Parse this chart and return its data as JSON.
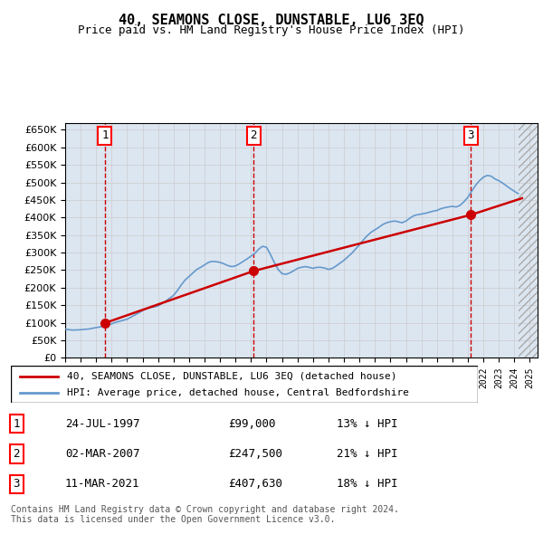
{
  "title": "40, SEAMONS CLOSE, DUNSTABLE, LU6 3EQ",
  "subtitle": "Price paid vs. HM Land Registry's House Price Index (HPI)",
  "ylim": [
    0,
    670000
  ],
  "yticks": [
    0,
    50000,
    100000,
    150000,
    200000,
    250000,
    300000,
    350000,
    400000,
    450000,
    500000,
    550000,
    600000,
    650000
  ],
  "xlim_start": 1995.0,
  "xlim_end": 2025.5,
  "grid_color": "#cccccc",
  "bg_color": "#dce6f1",
  "plot_bg": "#dce6f1",
  "hpi_color": "#6699cc",
  "price_color": "#cc0000",
  "dashed_line_color": "#cc0000",
  "transactions": [
    {
      "label": "1",
      "date": "24-JUL-1997",
      "year": 1997.56,
      "price": 99000,
      "hpi_pct": "13% ↓ HPI"
    },
    {
      "label": "2",
      "date": "02-MAR-2007",
      "year": 2007.17,
      "price": 247500,
      "hpi_pct": "21% ↓ HPI"
    },
    {
      "label": "3",
      "date": "11-MAR-2021",
      "year": 2021.19,
      "price": 407630,
      "hpi_pct": "18% ↓ HPI"
    }
  ],
  "legend_label_red": "40, SEAMONS CLOSE, DUNSTABLE, LU6 3EQ (detached house)",
  "legend_label_blue": "HPI: Average price, detached house, Central Bedfordshire",
  "footer": "Contains HM Land Registry data © Crown copyright and database right 2024.\nThis data is licensed under the Open Government Licence v3.0.",
  "hpi_data_x": [
    1995.0,
    1995.25,
    1995.5,
    1995.75,
    1996.0,
    1996.25,
    1996.5,
    1996.75,
    1997.0,
    1997.25,
    1997.5,
    1997.75,
    1998.0,
    1998.25,
    1998.5,
    1998.75,
    1999.0,
    1999.25,
    1999.5,
    1999.75,
    2000.0,
    2000.25,
    2000.5,
    2000.75,
    2001.0,
    2001.25,
    2001.5,
    2001.75,
    2002.0,
    2002.25,
    2002.5,
    2002.75,
    2003.0,
    2003.25,
    2003.5,
    2003.75,
    2004.0,
    2004.25,
    2004.5,
    2004.75,
    2005.0,
    2005.25,
    2005.5,
    2005.75,
    2006.0,
    2006.25,
    2006.5,
    2006.75,
    2007.0,
    2007.25,
    2007.5,
    2007.75,
    2008.0,
    2008.25,
    2008.5,
    2008.75,
    2009.0,
    2009.25,
    2009.5,
    2009.75,
    2010.0,
    2010.25,
    2010.5,
    2010.75,
    2011.0,
    2011.25,
    2011.5,
    2011.75,
    2012.0,
    2012.25,
    2012.5,
    2012.75,
    2013.0,
    2013.25,
    2013.5,
    2013.75,
    2014.0,
    2014.25,
    2014.5,
    2014.75,
    2015.0,
    2015.25,
    2015.5,
    2015.75,
    2016.0,
    2016.25,
    2016.5,
    2016.75,
    2017.0,
    2017.25,
    2017.5,
    2017.75,
    2018.0,
    2018.25,
    2018.5,
    2018.75,
    2019.0,
    2019.25,
    2019.5,
    2019.75,
    2020.0,
    2020.25,
    2020.5,
    2020.75,
    2021.0,
    2021.25,
    2021.5,
    2021.75,
    2022.0,
    2022.25,
    2022.5,
    2022.75,
    2023.0,
    2023.25,
    2023.5,
    2023.75,
    2024.0,
    2024.25
  ],
  "hpi_data_y": [
    82000,
    80000,
    79000,
    79500,
    80000,
    81000,
    82000,
    84000,
    86000,
    88000,
    90000,
    93000,
    97000,
    101000,
    104000,
    107000,
    110000,
    116000,
    122000,
    128000,
    135000,
    140000,
    143000,
    145000,
    148000,
    155000,
    162000,
    170000,
    178000,
    192000,
    208000,
    222000,
    232000,
    242000,
    252000,
    258000,
    265000,
    272000,
    275000,
    274000,
    272000,
    268000,
    263000,
    260000,
    262000,
    268000,
    275000,
    282000,
    290000,
    298000,
    310000,
    318000,
    315000,
    295000,
    272000,
    252000,
    240000,
    238000,
    242000,
    248000,
    255000,
    258000,
    260000,
    258000,
    255000,
    258000,
    258000,
    256000,
    252000,
    255000,
    262000,
    270000,
    278000,
    288000,
    298000,
    310000,
    322000,
    336000,
    348000,
    358000,
    365000,
    372000,
    380000,
    385000,
    388000,
    390000,
    388000,
    385000,
    390000,
    398000,
    405000,
    408000,
    410000,
    412000,
    415000,
    418000,
    420000,
    425000,
    428000,
    430000,
    432000,
    430000,
    435000,
    445000,
    458000,
    475000,
    492000,
    505000,
    515000,
    520000,
    518000,
    510000,
    505000,
    498000,
    490000,
    482000,
    475000,
    468000
  ],
  "price_line_x": [
    1997.56,
    2007.17,
    2021.19,
    2024.5
  ],
  "price_line_y": [
    99000,
    247500,
    407630,
    455000
  ]
}
